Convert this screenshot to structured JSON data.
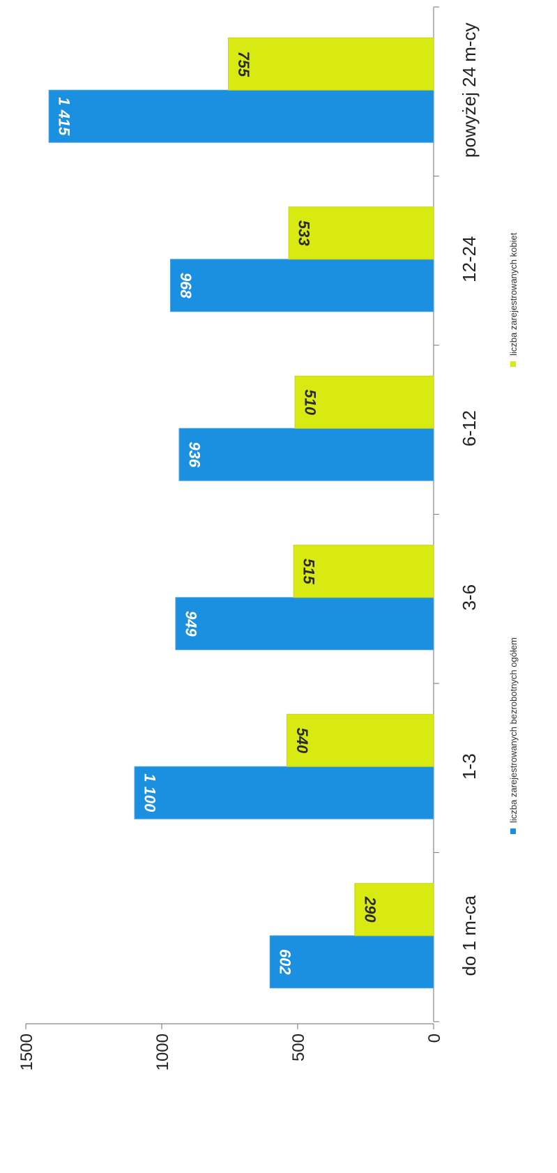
{
  "chart_data": {
    "type": "bar",
    "categories": [
      "do 1 m-ca",
      "1-3",
      "3-6",
      "6-12",
      "12-24",
      "powyżej 24 m-cy"
    ],
    "series": [
      {
        "name": "liczba zarejestrowanych bezrobotnych ogółem",
        "values": [
          602,
          1100,
          949,
          936,
          968,
          1415
        ],
        "labels": [
          "602",
          "1 100",
          "949",
          "936",
          "968",
          "1 415"
        ],
        "color": "#1b8fe0"
      },
      {
        "name": "liczba zarejestrowanych kobiet",
        "values": [
          290,
          540,
          515,
          510,
          533,
          755
        ],
        "labels": [
          "290",
          "540",
          "515",
          "510",
          "533",
          "755"
        ],
        "color": "#d8ea12"
      }
    ],
    "y_ticks": [
      "0",
      "500",
      "1000",
      "1500"
    ],
    "ylim": [
      0,
      1500
    ],
    "grid": false,
    "legend_position": "bottom",
    "orientation": "rotated 90° (value axis horizontal, categories along vertical)"
  }
}
